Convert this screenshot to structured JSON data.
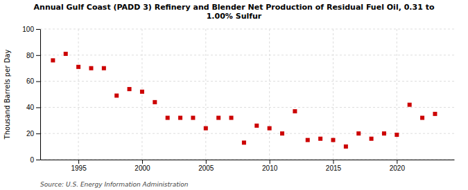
{
  "chart_data": {
    "type": "scatter",
    "title": "Annual Gulf Coast (PADD 3) Refinery and Blender Net Production of Residual Fuel Oil, 0.31 to\n1.00% Sulfur",
    "ylabel": "Thousand Barrels per Day",
    "source": "Source: U.S. Energy Information Administration",
    "x": [
      1993,
      1994,
      1995,
      1996,
      1997,
      1998,
      1999,
      2000,
      2001,
      2002,
      2003,
      2004,
      2005,
      2006,
      2007,
      2008,
      2009,
      2010,
      2011,
      2012,
      2013,
      2014,
      2015,
      2016,
      2017,
      2018,
      2019,
      2020,
      2021,
      2022,
      2023
    ],
    "values": [
      76,
      81,
      71,
      70,
      70,
      49,
      54,
      52,
      44,
      32,
      32,
      32,
      24,
      32,
      32,
      13,
      26,
      24,
      20,
      37,
      15,
      16,
      15,
      10,
      20,
      16,
      20,
      19,
      42,
      32,
      35
    ],
    "color": "#cc0000",
    "marker": "square",
    "xlim": [
      1992,
      2024.5
    ],
    "ylim": [
      0,
      100
    ],
    "xticks": [
      1995,
      2000,
      2005,
      2010,
      2015,
      2020
    ],
    "yticks": [
      0,
      20,
      40,
      60,
      80,
      100
    ],
    "grid": true
  }
}
